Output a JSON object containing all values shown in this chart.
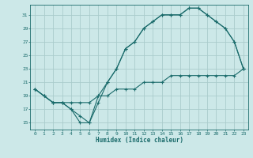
{
  "title": "",
  "xlabel": "Humidex (Indice chaleur)",
  "bg_color": "#cce8e8",
  "grid_color": "#aacccc",
  "line_color": "#1a6b6b",
  "xlim": [
    -0.5,
    23.5
  ],
  "ylim": [
    14.0,
    32.5
  ],
  "yticks": [
    15,
    17,
    19,
    21,
    23,
    25,
    27,
    29,
    31
  ],
  "xticks": [
    0,
    1,
    2,
    3,
    4,
    5,
    6,
    7,
    8,
    9,
    10,
    11,
    12,
    13,
    14,
    15,
    16,
    17,
    18,
    19,
    20,
    21,
    22,
    23
  ],
  "line1_x": [
    0,
    1,
    2,
    3,
    4,
    5,
    6,
    7,
    8,
    9,
    10,
    11,
    12,
    13,
    14,
    15,
    16,
    17,
    18,
    19,
    20,
    21,
    22,
    23
  ],
  "line1_y": [
    20,
    19,
    18,
    18,
    17,
    15,
    15,
    18,
    21,
    23,
    26,
    27,
    29,
    30,
    31,
    31,
    31,
    32,
    32,
    31,
    30,
    29,
    27,
    23
  ],
  "line2_x": [
    0,
    1,
    2,
    3,
    4,
    5,
    6,
    7,
    8,
    9,
    10,
    11,
    12,
    13,
    14,
    15,
    16,
    17,
    18,
    19,
    20,
    21,
    22,
    23
  ],
  "line2_y": [
    20,
    19,
    18,
    18,
    17,
    16,
    15,
    19,
    21,
    23,
    26,
    27,
    29,
    30,
    31,
    31,
    31,
    32,
    32,
    31,
    30,
    29,
    27,
    23
  ],
  "line3_x": [
    0,
    1,
    2,
    3,
    4,
    5,
    6,
    7,
    8,
    9,
    10,
    11,
    12,
    13,
    14,
    15,
    16,
    17,
    18,
    19,
    20,
    21,
    22,
    23
  ],
  "line3_y": [
    20,
    19,
    18,
    18,
    18,
    18,
    18,
    19,
    19,
    20,
    20,
    20,
    21,
    21,
    21,
    22,
    22,
    22,
    22,
    22,
    22,
    22,
    22,
    23
  ]
}
